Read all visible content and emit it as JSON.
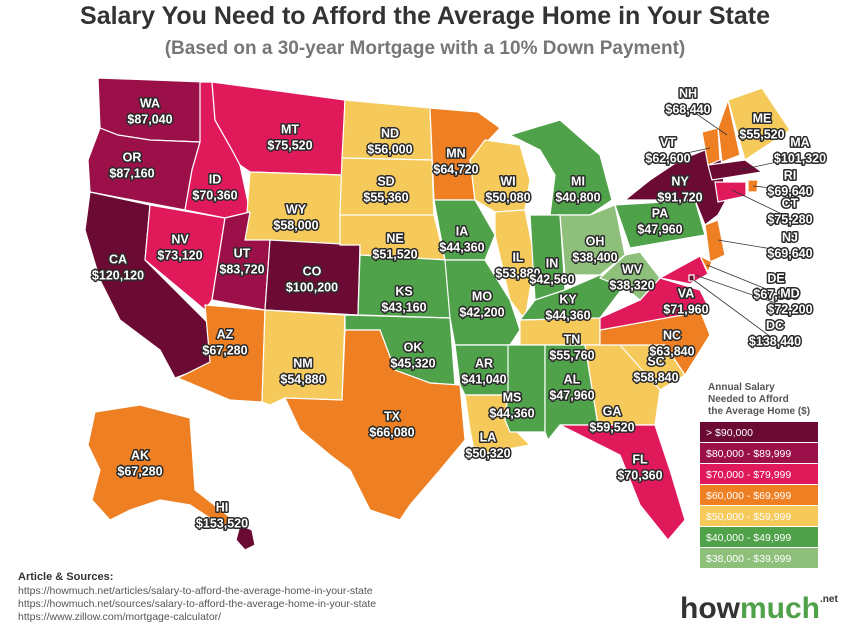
{
  "header": {
    "title": "Salary You Need to Afford the Average Home in Your State",
    "subtitle": "(Based on a 30-year Mortgage with a 10% Down Payment)"
  },
  "states": [
    {
      "abbr": "WA",
      "salary": "$87,040",
      "color": "#9b1048"
    },
    {
      "abbr": "OR",
      "salary": "$87,160",
      "color": "#9b1048"
    },
    {
      "abbr": "CA",
      "salary": "$120,120",
      "color": "#6b0a33"
    },
    {
      "abbr": "NV",
      "salary": "$73,120",
      "color": "#e0195a"
    },
    {
      "abbr": "ID",
      "salary": "$70,360",
      "color": "#e0195a"
    },
    {
      "abbr": "MT",
      "salary": "$75,520",
      "color": "#e0195a"
    },
    {
      "abbr": "WY",
      "salary": "$58,000",
      "color": "#f5c95a"
    },
    {
      "abbr": "UT",
      "salary": "$83,720",
      "color": "#9b1048"
    },
    {
      "abbr": "CO",
      "salary": "$100,200",
      "color": "#6b0a33"
    },
    {
      "abbr": "AZ",
      "salary": "$67,280",
      "color": "#ee7f22"
    },
    {
      "abbr": "NM",
      "salary": "$54,880",
      "color": "#f5c95a"
    },
    {
      "abbr": "ND",
      "salary": "$56,000",
      "color": "#f5c95a"
    },
    {
      "abbr": "SD",
      "salary": "$55,360",
      "color": "#f5c95a"
    },
    {
      "abbr": "NE",
      "salary": "$51,520",
      "color": "#f5c95a"
    },
    {
      "abbr": "KS",
      "salary": "$43,160",
      "color": "#4fa24a"
    },
    {
      "abbr": "OK",
      "salary": "$45,320",
      "color": "#4fa24a"
    },
    {
      "abbr": "TX",
      "salary": "$66,080",
      "color": "#ee7f22"
    },
    {
      "abbr": "MN",
      "salary": "$64,720",
      "color": "#ee7f22"
    },
    {
      "abbr": "IA",
      "salary": "$44,360",
      "color": "#4fa24a"
    },
    {
      "abbr": "MO",
      "salary": "$42,200",
      "color": "#4fa24a"
    },
    {
      "abbr": "AR",
      "salary": "$41,040",
      "color": "#4fa24a"
    },
    {
      "abbr": "LA",
      "salary": "$50,320",
      "color": "#f5c95a"
    },
    {
      "abbr": "WI",
      "salary": "$50,080",
      "color": "#f5c95a"
    },
    {
      "abbr": "IL",
      "salary": "$53,880",
      "color": "#f5c95a"
    },
    {
      "abbr": "MI",
      "salary": "$40,800",
      "color": "#4fa24a"
    },
    {
      "abbr": "IN",
      "salary": "$42,560",
      "color": "#4fa24a"
    },
    {
      "abbr": "OH",
      "salary": "$38,400",
      "color": "#8ec07c"
    },
    {
      "abbr": "KY",
      "salary": "$44,360",
      "color": "#4fa24a"
    },
    {
      "abbr": "TN",
      "salary": "$55,760",
      "color": "#f5c95a"
    },
    {
      "abbr": "MS",
      "salary": "$44,360",
      "color": "#4fa24a"
    },
    {
      "abbr": "AL",
      "salary": "$47,960",
      "color": "#4fa24a"
    },
    {
      "abbr": "GA",
      "salary": "$59,520",
      "color": "#f5c95a"
    },
    {
      "abbr": "FL",
      "salary": "$70,360",
      "color": "#e0195a"
    },
    {
      "abbr": "SC",
      "salary": "$58,840",
      "color": "#f5c95a"
    },
    {
      "abbr": "NC",
      "salary": "$63,840",
      "color": "#ee7f22"
    },
    {
      "abbr": "VA",
      "salary": "$71,960",
      "color": "#e0195a"
    },
    {
      "abbr": "WV",
      "salary": "$38,320",
      "color": "#8ec07c"
    },
    {
      "abbr": "PA",
      "salary": "$47,960",
      "color": "#4fa24a"
    },
    {
      "abbr": "NY",
      "salary": "$91,720",
      "color": "#6b0a33"
    },
    {
      "abbr": "VT",
      "salary": "$62,600",
      "color": "#ee7f22"
    },
    {
      "abbr": "NH",
      "salary": "$68,440",
      "color": "#ee7f22"
    },
    {
      "abbr": "ME",
      "salary": "$55,520",
      "color": "#f5c95a"
    },
    {
      "abbr": "MA",
      "salary": "$101,320",
      "color": "#6b0a33"
    },
    {
      "abbr": "RI",
      "salary": "$69,640",
      "color": "#ee7f22"
    },
    {
      "abbr": "CT",
      "salary": "$75,280",
      "color": "#e0195a"
    },
    {
      "abbr": "NJ",
      "salary": "$69,640",
      "color": "#ee7f22"
    },
    {
      "abbr": "DE",
      "salary": "$67,960",
      "color": "#ee7f22"
    },
    {
      "abbr": "MD",
      "salary": "$72,200",
      "color": "#e0195a"
    },
    {
      "abbr": "DC",
      "salary": "$138,440",
      "color": "#6b0a33"
    },
    {
      "abbr": "AK",
      "salary": "$67,280",
      "color": "#ee7f22"
    },
    {
      "abbr": "HI",
      "salary": "$153,520",
      "color": "#6b0a33"
    }
  ],
  "legend": {
    "title": [
      "Annual Salary",
      "Needed to Afford",
      "the Average Home ($)"
    ],
    "items": [
      {
        "label": "> $90,000",
        "color": "#6b0a33"
      },
      {
        "label": "$80,000 - $89,999",
        "color": "#9b1048"
      },
      {
        "label": "$70,000 - $79,999",
        "color": "#e0195a"
      },
      {
        "label": "$60,000 - $69,999",
        "color": "#ee7f22"
      },
      {
        "label": "$50,000 - $59,999",
        "color": "#f5c95a"
      },
      {
        "label": "$40,000 - $49,999",
        "color": "#4fa24a"
      },
      {
        "label": "$38,000 - $39,999",
        "color": "#8ec07c"
      }
    ]
  },
  "sources": {
    "heading": "Article & Sources:",
    "links": [
      "https://howmuch.net/articles/salary-to-afford-the-average-home-in-your-state",
      "https://howmuch.net/sources/salary-to-afford-the-average-home-in-your-state",
      "https://www.zillow.com/mortgage-calculator/"
    ]
  },
  "logo": {
    "how": "how",
    "much": "much",
    "suffix": ".net"
  }
}
